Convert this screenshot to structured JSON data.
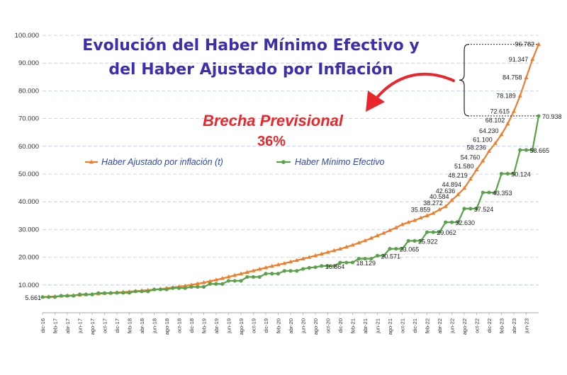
{
  "colors": {
    "orange": "#ee7d2c",
    "green": "#5aa24a",
    "title": "#3b2fb0",
    "accent_red": "#e8262b",
    "legend_text": "#2f47a8"
  },
  "annotation": {
    "title_line1": "Evolución del Haber Mínimo Efectivo y",
    "title_line2": "del Haber Ajustado por Inflación",
    "brecha_label": "Brecha Previsional",
    "brecha_value": "36%"
  },
  "chart_data": {
    "type": "line",
    "title": "Evolución del Haber Mínimo Efectivo y del Haber Ajustado por Inflación",
    "xlabel": "",
    "ylabel": "",
    "ylim": [
      0,
      100000
    ],
    "y_ticks": [
      "",
      "10.000",
      "20.000",
      "30.000",
      "40.000",
      "50.000",
      "60.000",
      "70.000",
      "80.000",
      "90.000",
      "100.000"
    ],
    "x_tick_labels": [
      "dic-16",
      "feb-17",
      "abr-17",
      "jun-17",
      "ago-17",
      "oct-17",
      "dic-17",
      "feb-18",
      "abr-18",
      "jun-18",
      "ago-18",
      "oct-18",
      "dic-18",
      "feb-19",
      "abr-19",
      "jun-19",
      "ago-19",
      "oct-19",
      "dic-19",
      "feb-20",
      "abr-20",
      "jun-20",
      "ago-20",
      "oct-20",
      "dic-20",
      "feb-21",
      "abr-21",
      "jun-21",
      "ago-21",
      "oct-21",
      "dic-21",
      "feb-22",
      "abr-22",
      "jun-22",
      "ago-22",
      "oct-22",
      "dic-22",
      "feb-23",
      "abr-23",
      "jun-23"
    ],
    "grid": true,
    "legend_position": "upper-left",
    "series": [
      {
        "name": "Haber Ajustado por inflación (t)",
        "color": "#ee7d2c",
        "marker": "triangle",
        "values": [
          5661,
          5780,
          5900,
          6030,
          6160,
          6290,
          6420,
          6560,
          6700,
          6850,
          7000,
          7150,
          7300,
          7450,
          7620,
          7800,
          7980,
          8170,
          8380,
          8600,
          8850,
          9120,
          9400,
          9700,
          10050,
          10450,
          10880,
          11350,
          11850,
          12380,
          12930,
          13500,
          14050,
          14600,
          15150,
          15700,
          16250,
          16800,
          17300,
          17800,
          18350,
          18900,
          19450,
          20000,
          20600,
          21200,
          21800,
          22400,
          23000,
          23700,
          24400,
          25200,
          26000,
          26900,
          27800,
          28700,
          29700,
          30700,
          31800,
          32600,
          33300,
          34200,
          35000,
          35859,
          37200,
          38272,
          40584,
          42636,
          44894,
          48219,
          51580,
          54760,
          58236,
          61100,
          64230,
          68102,
          72615,
          78189,
          84758,
          91347,
          96782
        ],
        "data_labels": [
          {
            "i": 0,
            "text": "5.661"
          },
          {
            "i": 63,
            "text": "35.859"
          },
          {
            "i": 65,
            "text": "38.272"
          },
          {
            "i": 66,
            "text": "40.584"
          },
          {
            "i": 67,
            "text": "42.636"
          },
          {
            "i": 68,
            "text": "44.894"
          },
          {
            "i": 69,
            "text": "48.219"
          },
          {
            "i": 70,
            "text": "51.580"
          },
          {
            "i": 71,
            "text": "54.760"
          },
          {
            "i": 72,
            "text": "58.236"
          },
          {
            "i": 73,
            "text": "61.100"
          },
          {
            "i": 74,
            "text": "64.230"
          },
          {
            "i": 75,
            "text": "68.102"
          },
          {
            "i": 76,
            "text": "72.615"
          },
          {
            "i": 77,
            "text": "78.189"
          },
          {
            "i": 78,
            "text": "84.758"
          },
          {
            "i": 79,
            "text": "91.347"
          },
          {
            "i": 80,
            "text": "96.782"
          }
        ]
      },
      {
        "name": "Haber Mínimo Efectivo",
        "color": "#5aa24a",
        "marker": "circle",
        "values": [
          5661,
          5661,
          5661,
          6110,
          6110,
          6110,
          6600,
          6600,
          6600,
          7100,
          7100,
          7100,
          7200,
          7200,
          7200,
          7700,
          7700,
          7700,
          8400,
          8400,
          8400,
          8900,
          8900,
          8900,
          9300,
          9300,
          9300,
          10400,
          10400,
          10400,
          11500,
          11500,
          11500,
          12900,
          12900,
          12900,
          14100,
          14100,
          14100,
          15100,
          15100,
          15100,
          15800,
          16200,
          16400,
          16864,
          16864,
          16864,
          18100,
          18100,
          18129,
          19500,
          19500,
          19500,
          20571,
          20571,
          23065,
          23065,
          23065,
          25922,
          25922,
          25922,
          29062,
          29062,
          29062,
          32630,
          32630,
          32630,
          37524,
          37524,
          37524,
          43353,
          43353,
          43353,
          50124,
          50124,
          50124,
          58665,
          58665,
          58665,
          70938
        ],
        "data_labels": [
          {
            "i": 45,
            "text": "16.864"
          },
          {
            "i": 50,
            "text": "18.129"
          },
          {
            "i": 54,
            "text": "20.571"
          },
          {
            "i": 57,
            "text": "23.065"
          },
          {
            "i": 60,
            "text": "25.922"
          },
          {
            "i": 63,
            "text": "29.062"
          },
          {
            "i": 66,
            "text": "32.630"
          },
          {
            "i": 69,
            "text": "37.524"
          },
          {
            "i": 72,
            "text": "43.353"
          },
          {
            "i": 75,
            "text": "50.124"
          },
          {
            "i": 78,
            "text": "58.665"
          },
          {
            "i": 80,
            "text": "70.938"
          }
        ]
      }
    ]
  }
}
